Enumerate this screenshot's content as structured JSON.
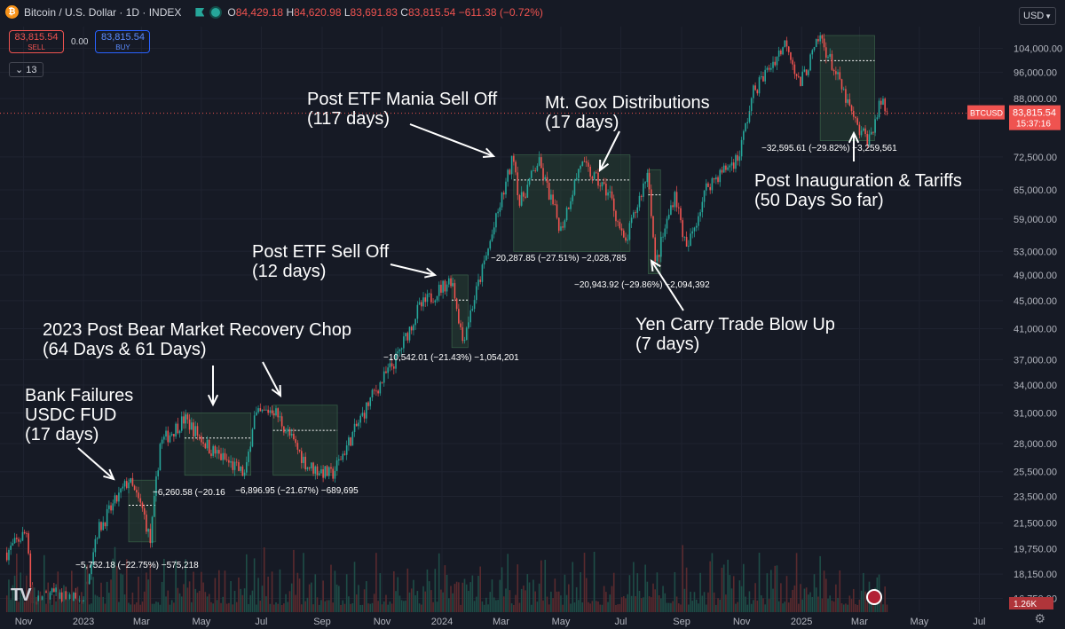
{
  "header": {
    "symbol_title": "Bitcoin / U.S. Dollar · 1D · INDEX",
    "ohlc": {
      "o_label": "O",
      "o": "84,429.18",
      "h_label": "H",
      "h": "84,620.98",
      "l_label": "L",
      "l": "83,691.83",
      "c_label": "C",
      "c": "83,815.54",
      "change": "−611.38 (−0.72%)"
    }
  },
  "trade": {
    "sell_price": "83,815.54",
    "sell_label": "SELL",
    "spread": "0.00",
    "buy_price": "83,815.54",
    "buy_label": "BUY"
  },
  "indicators_count": "13",
  "currency": "USD",
  "price_tag": {
    "symbol": "BTCUSD",
    "price": "83,815.54",
    "countdown": "15:37:16"
  },
  "volume_tag": "1.26K",
  "colors": {
    "background": "#161a25",
    "up": "#26a69a",
    "down": "#ef5350",
    "box": "#2a4a37"
  },
  "chart_data": {
    "type": "candlestick",
    "symbol": "BTCUSD",
    "interval": "1D",
    "x_tick_labels": [
      "Nov",
      "2023",
      "Mar",
      "May",
      "Jul",
      "Sep",
      "Nov",
      "2024",
      "Mar",
      "May",
      "Jul",
      "Sep",
      "Nov",
      "2025",
      "Mar",
      "May",
      "Jul"
    ],
    "y_tick_labels": [
      "104,000.00",
      "96,000.00",
      "88,000.00",
      "72,500.00",
      "65,000.00",
      "59,000.00",
      "53,000.00",
      "49,000.00",
      "45,000.00",
      "41,000.00",
      "37,000.00",
      "34,000.00",
      "31,000.00",
      "28,000.00",
      "25,500.00",
      "23,500.00",
      "21,500.00",
      "19,750.00",
      "18,150.00",
      "16,750.00"
    ],
    "y_scale": "log",
    "ylim": [
      16000,
      108500
    ],
    "price_path": [
      [
        "2022-10-15",
        19500
      ],
      [
        "2022-11-05",
        21000
      ],
      [
        "2022-11-09",
        16500
      ],
      [
        "2022-12-01",
        17000
      ],
      [
        "2022-12-31",
        16600
      ],
      [
        "2023-01-14",
        20800
      ],
      [
        "2023-02-16",
        24800
      ],
      [
        "2023-03-03",
        22300
      ],
      [
        "2023-03-10",
        20200
      ],
      [
        "2023-03-20",
        28000
      ],
      [
        "2023-04-14",
        30400
      ],
      [
        "2023-05-10",
        27500
      ],
      [
        "2023-06-15",
        25200
      ],
      [
        "2023-06-23",
        30500
      ],
      [
        "2023-07-13",
        31500
      ],
      [
        "2023-08-17",
        26000
      ],
      [
        "2023-09-11",
        25200
      ],
      [
        "2023-10-23",
        33000
      ],
      [
        "2023-11-15",
        37000
      ],
      [
        "2023-12-08",
        43800
      ],
      [
        "2024-01-11",
        48500
      ],
      [
        "2024-01-22",
        39500
      ],
      [
        "2024-02-14",
        51500
      ],
      [
        "2024-03-14",
        73000
      ],
      [
        "2024-03-20",
        62000
      ],
      [
        "2024-04-08",
        71500
      ],
      [
        "2024-05-01",
        57000
      ],
      [
        "2024-05-21",
        71000
      ],
      [
        "2024-06-20",
        64000
      ],
      [
        "2024-07-05",
        54000
      ],
      [
        "2024-07-29",
        69500
      ],
      [
        "2024-08-05",
        50500
      ],
      [
        "2024-08-25",
        64500
      ],
      [
        "2024-09-06",
        53000
      ],
      [
        "2024-09-27",
        66000
      ],
      [
        "2024-10-29",
        72500
      ],
      [
        "2024-11-13",
        90000
      ],
      [
        "2024-12-17",
        106500
      ],
      [
        "2024-12-30",
        92000
      ],
      [
        "2025-01-20",
        108000
      ],
      [
        "2025-02-03",
        97000
      ],
      [
        "2025-02-28",
        79000
      ],
      [
        "2025-03-11",
        77000
      ],
      [
        "2025-03-24",
        88000
      ],
      [
        "2025-03-29",
        83815.54
      ]
    ],
    "drawdown_boxes": [
      {
        "label": "−5,752.18 (−22.75%) −575,218",
        "from": "2023-02-16",
        "to": "2023-03-10",
        "high": 24800,
        "low": 20200
      },
      {
        "label": "−6,260.58 (−20.16",
        "from": "2023-04-14",
        "to": "2023-06-15",
        "high": 31000,
        "low": 25200
      },
      {
        "label": "−6,896.95 (−21.67%) −689,695",
        "from": "2023-07-13",
        "to": "2023-09-11",
        "high": 31800,
        "low": 25200
      },
      {
        "label": "−10,542.01 (−21.43%) −1,054,201",
        "from": "2024-01-11",
        "to": "2024-01-22",
        "high": 49000,
        "low": 38500
      },
      {
        "label": "−20,287.85 (−27.51%) −2,028,785",
        "from": "2024-03-14",
        "to": "2024-07-05",
        "high": 73000,
        "low": 53000
      },
      {
        "label": "−20,943.92 (−29.86%) −2,094,392",
        "from": "2024-07-29",
        "to": "2024-08-05",
        "high": 69500,
        "low": 49200
      },
      {
        "label": "−32,595.61 (−29.82%) −3,259,561",
        "from": "2025-01-20",
        "to": "2025-03-11",
        "high": 108500,
        "low": 76500
      }
    ],
    "annotations": [
      {
        "lines": [
          "Bank Failures",
          "USDC FUD",
          "(17 days)"
        ]
      },
      {
        "lines": [
          "2023 Post Bear Market Recovery Chop",
          "(64 Days & 61 Days)"
        ]
      },
      {
        "lines": [
          "Post ETF Sell Off",
          "(12 days)"
        ]
      },
      {
        "lines": [
          "Post ETF Mania Sell Off",
          "(117 days)"
        ]
      },
      {
        "lines": [
          "Mt. Gox Distributions",
          "(17 days)"
        ]
      },
      {
        "lines": [
          "Yen Carry Trade Blow Up",
          "(7 days)"
        ]
      },
      {
        "lines": [
          "Post Inauguration & Tariffs",
          "(50 Days So far)"
        ]
      }
    ],
    "last_price": 83815.54
  }
}
